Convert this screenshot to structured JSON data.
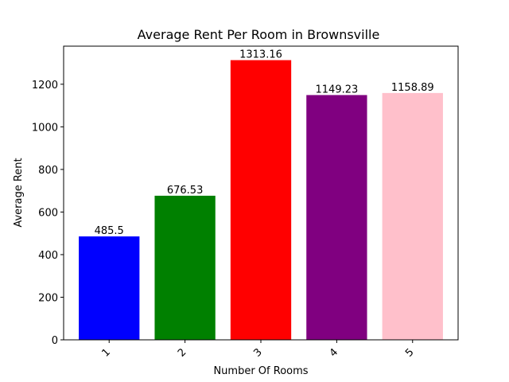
{
  "chart_data": {
    "type": "bar",
    "title": "Average Rent Per Room in Brownsville",
    "xlabel": "Number Of Rooms",
    "ylabel": "Average Rent",
    "categories": [
      "1",
      "2",
      "3",
      "4",
      "5"
    ],
    "values": [
      485.5,
      676.53,
      1313.16,
      1149.23,
      1158.89
    ],
    "value_labels": [
      "485.5",
      "676.53",
      "1313.16",
      "1149.23",
      "1158.89"
    ],
    "colors": [
      "#0000ff",
      "#008000",
      "#ff0000",
      "#800080",
      "#ffc0cb"
    ],
    "ylim": [
      0,
      1378.8
    ],
    "yticks": [
      0,
      200,
      400,
      600,
      800,
      1000,
      1200
    ],
    "grid": false,
    "xtick_rotation": 45
  }
}
